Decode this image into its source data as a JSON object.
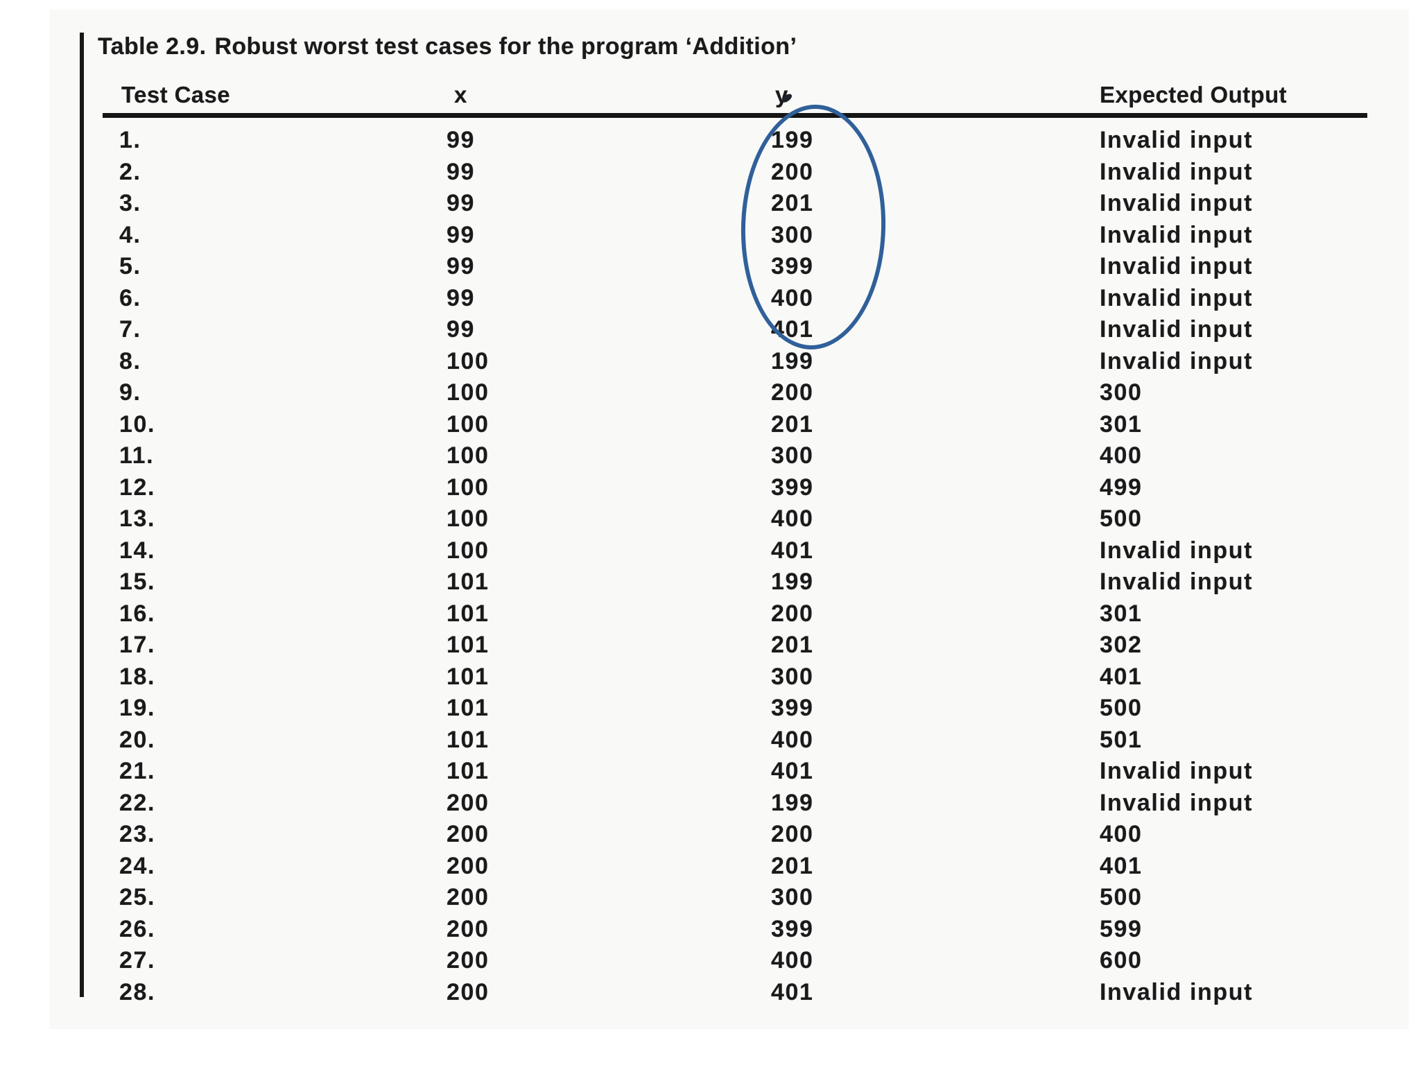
{
  "caption": {
    "label": "Table 2.9.",
    "text": "Robust worst test cases for the program ‘Addition’"
  },
  "table": {
    "columns": [
      "Test Case",
      "x",
      "y",
      "Expected Output"
    ],
    "rows": [
      {
        "case": "1.",
        "x": "99",
        "y": "199",
        "expected": "Invalid input"
      },
      {
        "case": "2.",
        "x": "99",
        "y": "200",
        "expected": "Invalid input"
      },
      {
        "case": "3.",
        "x": "99",
        "y": "201",
        "expected": "Invalid input"
      },
      {
        "case": "4.",
        "x": "99",
        "y": "300",
        "expected": "Invalid input"
      },
      {
        "case": "5.",
        "x": "99",
        "y": "399",
        "expected": "Invalid input"
      },
      {
        "case": "6.",
        "x": "99",
        "y": "400",
        "expected": "Invalid input"
      },
      {
        "case": "7.",
        "x": "99",
        "y": "401",
        "expected": "Invalid input"
      },
      {
        "case": "8.",
        "x": "100",
        "y": "199",
        "expected": "Invalid input"
      },
      {
        "case": "9.",
        "x": "100",
        "y": "200",
        "expected": "300"
      },
      {
        "case": "10.",
        "x": "100",
        "y": "201",
        "expected": "301"
      },
      {
        "case": "11.",
        "x": "100",
        "y": "300",
        "expected": "400"
      },
      {
        "case": "12.",
        "x": "100",
        "y": "399",
        "expected": "499"
      },
      {
        "case": "13.",
        "x": "100",
        "y": "400",
        "expected": "500"
      },
      {
        "case": "14.",
        "x": "100",
        "y": "401",
        "expected": "Invalid input"
      },
      {
        "case": "15.",
        "x": "101",
        "y": "199",
        "expected": "Invalid input"
      },
      {
        "case": "16.",
        "x": "101",
        "y": "200",
        "expected": "301"
      },
      {
        "case": "17.",
        "x": "101",
        "y": "201",
        "expected": "302"
      },
      {
        "case": "18.",
        "x": "101",
        "y": "300",
        "expected": "401"
      },
      {
        "case": "19.",
        "x": "101",
        "y": "399",
        "expected": "500"
      },
      {
        "case": "20.",
        "x": "101",
        "y": "400",
        "expected": "501"
      },
      {
        "case": "21.",
        "x": "101",
        "y": "401",
        "expected": "Invalid input"
      },
      {
        "case": "22.",
        "x": "200",
        "y": "199",
        "expected": "Invalid input"
      },
      {
        "case": "23.",
        "x": "200",
        "y": "200",
        "expected": "400"
      },
      {
        "case": "24.",
        "x": "200",
        "y": "201",
        "expected": "401"
      },
      {
        "case": "25.",
        "x": "200",
        "y": "300",
        "expected": "500"
      },
      {
        "case": "26.",
        "x": "200",
        "y": "399",
        "expected": "599"
      },
      {
        "case": "27.",
        "x": "200",
        "y": "400",
        "expected": "600"
      },
      {
        "case": "28.",
        "x": "200",
        "y": "401",
        "expected": "Invalid input"
      }
    ]
  },
  "annotation": {
    "type": "hand-drawn ellipse",
    "circled_column": "y",
    "circled_rows": "1-7",
    "circled_values": [
      "199",
      "200",
      "201",
      "300",
      "399",
      "400",
      "401"
    ],
    "color": "#30609a"
  },
  "colors": {
    "ink": "#1a1a1a",
    "rule": "#161616",
    "paper": "#f9f9f8"
  }
}
